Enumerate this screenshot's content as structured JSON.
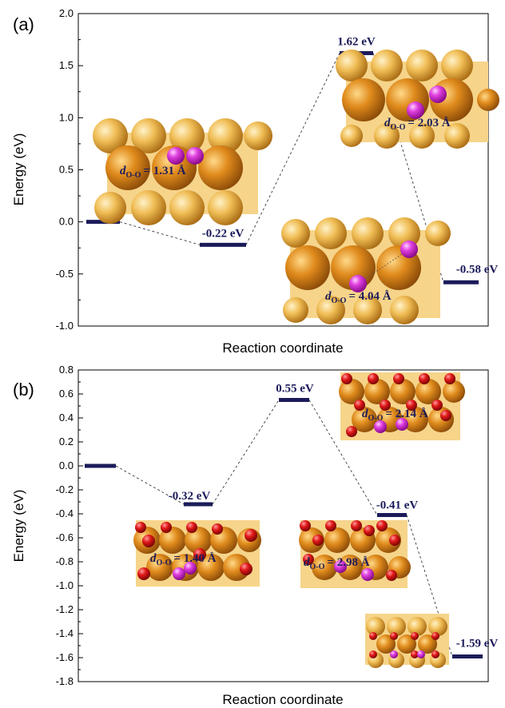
{
  "chart_data": [
    {
      "type": "line",
      "panel_label": "(a)",
      "xlabel": "Reaction coordinate",
      "ylabel": "Energy (eV)",
      "ylim": [
        -1.0,
        2.0
      ],
      "yticks": [
        "2.0",
        "1.5",
        "1.0",
        "0.5",
        "0.0",
        "-0.5",
        "-1.0"
      ],
      "ytick_values": [
        2.0,
        1.5,
        1.0,
        0.5,
        0.0,
        -0.5,
        -1.0
      ],
      "levels": [
        {
          "energy": 0.0,
          "label": ""
        },
        {
          "energy": -0.22,
          "label": "-0.22 eV"
        },
        {
          "energy": 1.62,
          "label": "1.62 eV"
        },
        {
          "energy": -0.58,
          "label": "-0.58 eV"
        }
      ],
      "annotations": [
        {
          "prefix": "d",
          "sub": "O-O",
          "text": "= 1.31 Å"
        },
        {
          "prefix": "d",
          "sub": "O-O",
          "text": "= 2.03 Å"
        },
        {
          "prefix": "d",
          "sub": "O-O",
          "text": "= 4.04 Å"
        }
      ],
      "colors": {
        "level": "#1b1b5a",
        "surface": "#e8b04a",
        "oxygen_adsorbate": "#d63ad6"
      }
    },
    {
      "type": "line",
      "panel_label": "(b)",
      "xlabel": "Reaction coordinate",
      "ylabel": "Energy (eV)",
      "ylim": [
        -1.8,
        0.8
      ],
      "yticks": [
        "0.8",
        "0.6",
        "0.4",
        "0.2",
        "0.0",
        "-0.2",
        "-0.4",
        "-0.6",
        "-0.8",
        "-1.0",
        "-1.2",
        "-1.4",
        "-1.6",
        "-1.8"
      ],
      "ytick_values": [
        0.8,
        0.6,
        0.4,
        0.2,
        0.0,
        -0.2,
        -0.4,
        -0.6,
        -0.8,
        -1.0,
        -1.2,
        -1.4,
        -1.6,
        -1.8
      ],
      "levels": [
        {
          "energy": 0.0,
          "label": ""
        },
        {
          "energy": -0.32,
          "label": "-0.32 eV"
        },
        {
          "energy": 0.55,
          "label": "0.55 eV"
        },
        {
          "energy": -0.41,
          "label": "-0.41 eV"
        },
        {
          "energy": -1.59,
          "label": "-1.59 eV"
        }
      ],
      "annotations": [
        {
          "prefix": "d",
          "sub": "O-O",
          "text": "= 2.14 Å"
        },
        {
          "prefix": "d",
          "sub": "O-O",
          "text": "= 1.40 Å"
        },
        {
          "prefix": "d",
          "sub": "O-O",
          "text": "= 2.98 Å"
        }
      ],
      "colors": {
        "level": "#1b1b5a",
        "surface": "#e8b04a",
        "oxygen_lattice": "#d8141c",
        "oxygen_adsorbate": "#d63ad6"
      }
    }
  ]
}
